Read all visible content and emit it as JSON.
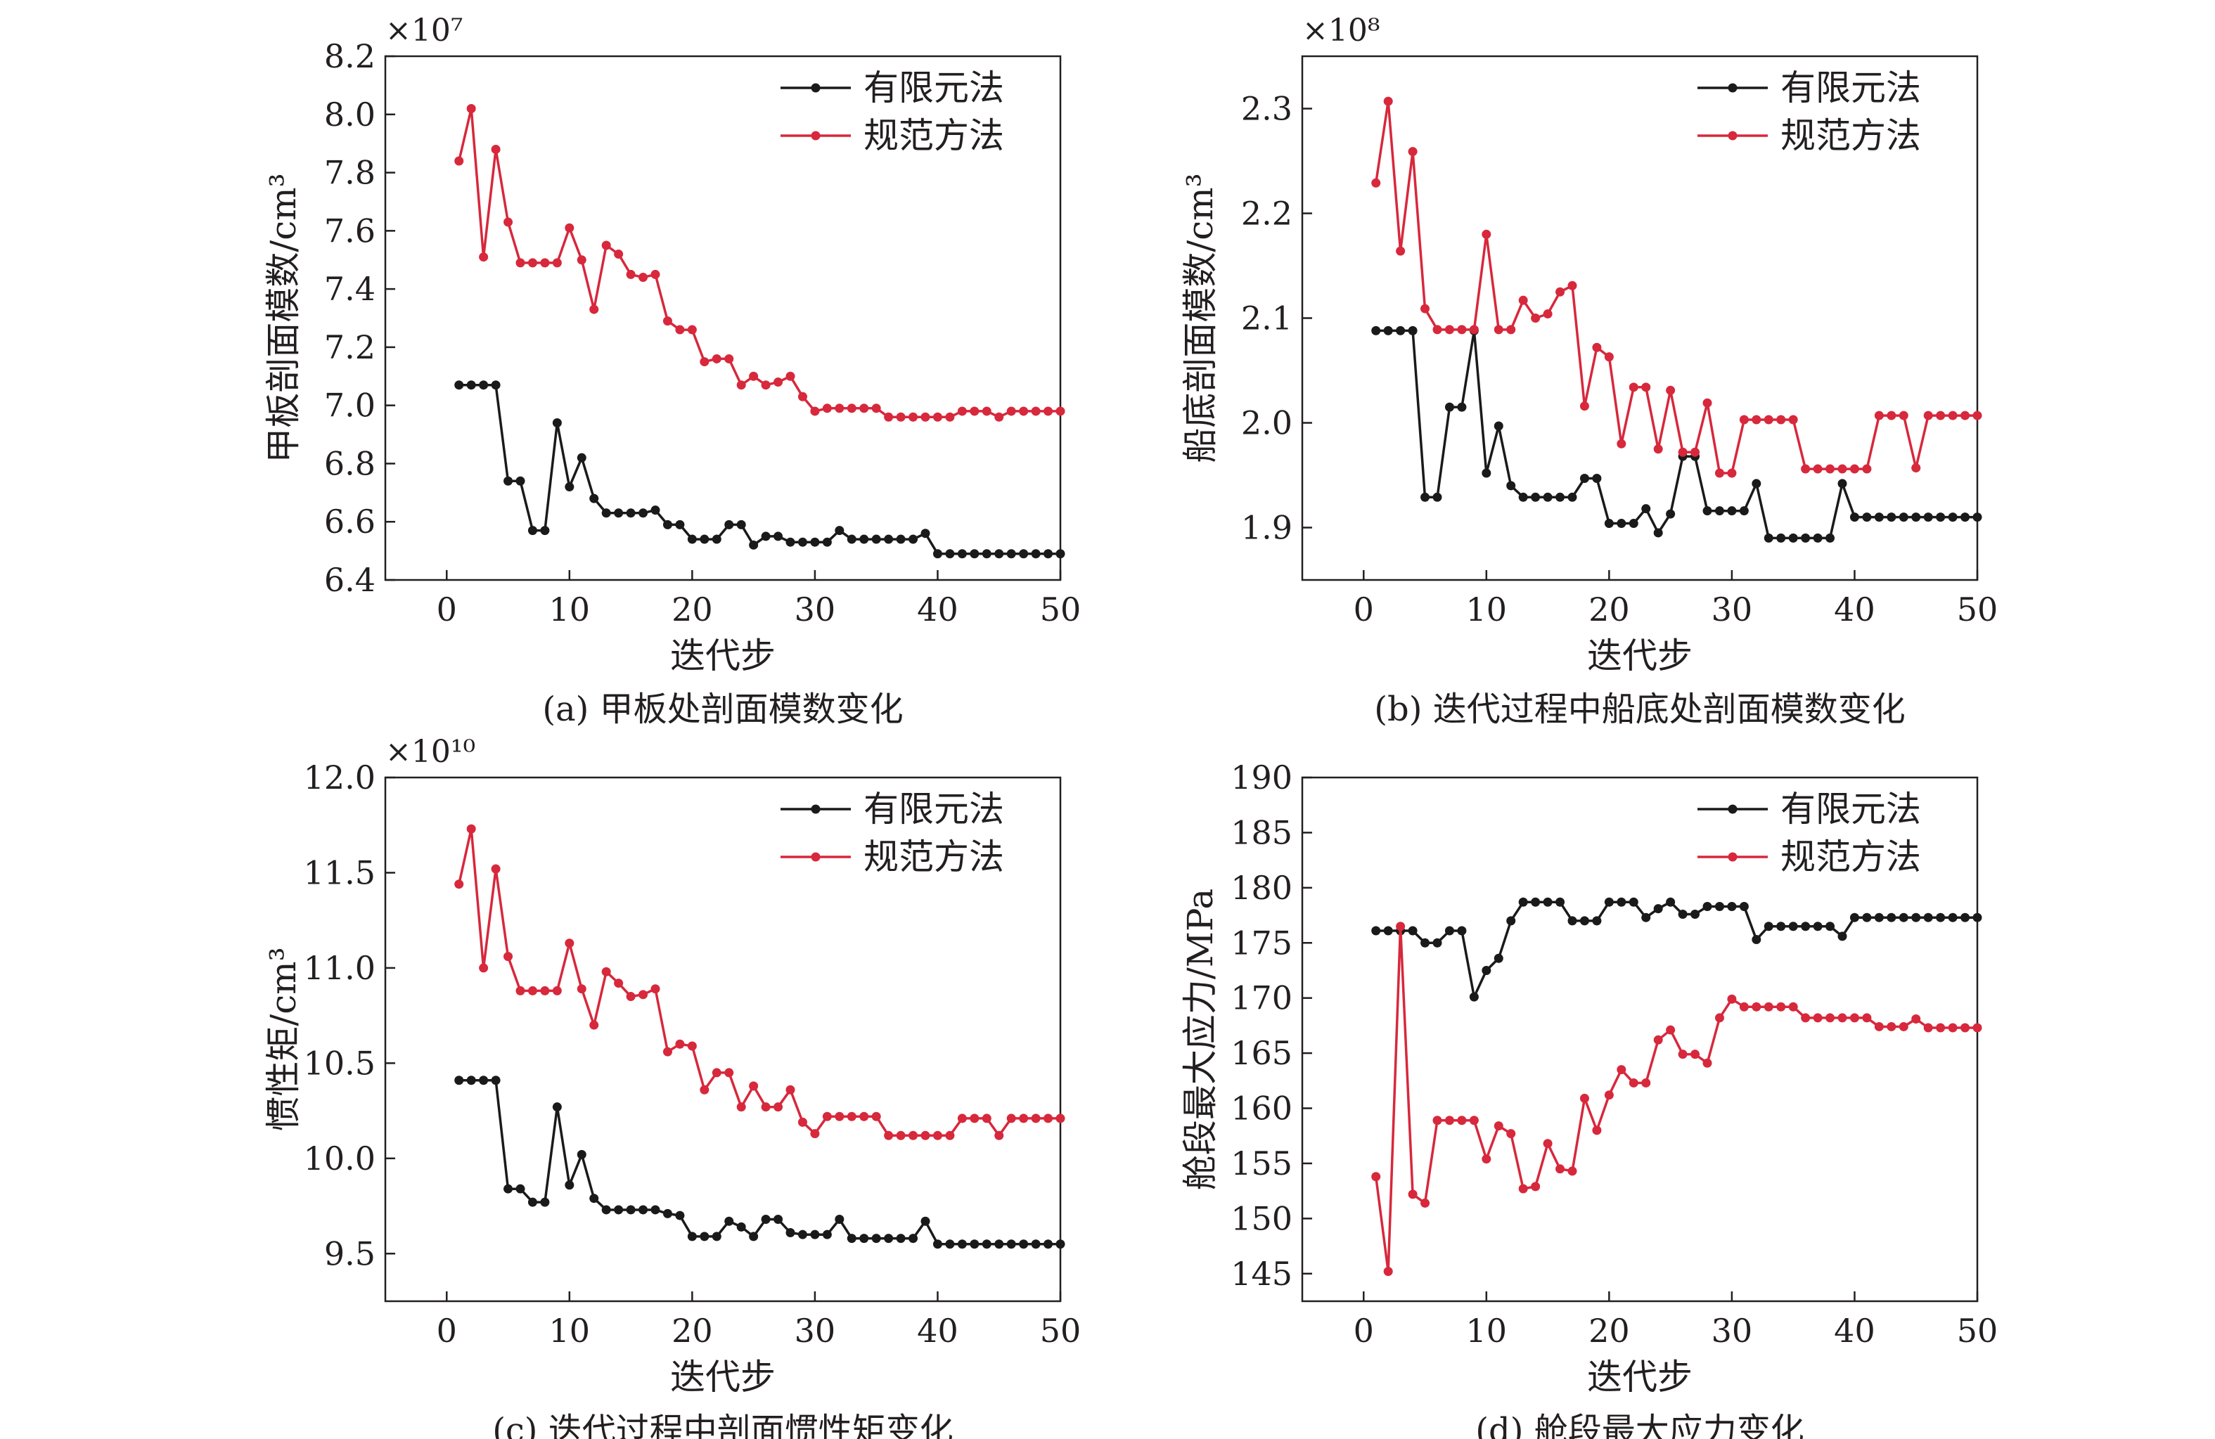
{
  "chart_data": [
    {
      "type": "line",
      "caption": "(a) 甲板处剖面模数变化",
      "xlabel": "迭代步",
      "ylabel": "甲板剖面模数/cm³",
      "exponent": "×10⁷",
      "xlim": [
        -5,
        50
      ],
      "ylim": [
        6.4,
        8.2
      ],
      "xticks": [
        0,
        10,
        20,
        30,
        40,
        50
      ],
      "yticks": [
        "6.4",
        "6.6",
        "6.8",
        "7.0",
        "7.2",
        "7.4",
        "7.6",
        "7.8",
        "8.0",
        "8.2"
      ],
      "grid": false,
      "legend_position": "top-right",
      "x": [
        1,
        2,
        3,
        4,
        5,
        6,
        7,
        8,
        9,
        10,
        11,
        12,
        13,
        14,
        15,
        16,
        17,
        18,
        19,
        20,
        21,
        22,
        23,
        24,
        25,
        26,
        27,
        28,
        29,
        30,
        31,
        32,
        33,
        34,
        35,
        36,
        37,
        38,
        39,
        40,
        41,
        42,
        43,
        44,
        45,
        46,
        47,
        48,
        49,
        50
      ],
      "series": [
        {
          "name": "有限元法",
          "color": "#1a1a1a",
          "values": [
            7.07,
            7.07,
            7.07,
            7.07,
            6.74,
            6.74,
            6.57,
            6.57,
            6.94,
            6.72,
            6.82,
            6.68,
            6.63,
            6.63,
            6.63,
            6.63,
            6.64,
            6.59,
            6.59,
            6.54,
            6.54,
            6.54,
            6.59,
            6.59,
            6.52,
            6.55,
            6.55,
            6.53,
            6.53,
            6.53,
            6.53,
            6.57,
            6.54,
            6.54,
            6.54,
            6.54,
            6.54,
            6.54,
            6.56,
            6.49,
            6.49,
            6.49,
            6.49,
            6.49,
            6.49,
            6.49,
            6.49,
            6.49,
            6.49,
            6.49
          ]
        },
        {
          "name": "规范方法",
          "color": "#d7283c",
          "values": [
            7.84,
            8.02,
            7.51,
            7.88,
            7.63,
            7.49,
            7.49,
            7.49,
            7.49,
            7.61,
            7.5,
            7.33,
            7.55,
            7.52,
            7.45,
            7.44,
            7.45,
            7.29,
            7.26,
            7.26,
            7.15,
            7.16,
            7.16,
            7.07,
            7.1,
            7.07,
            7.08,
            7.1,
            7.03,
            6.98,
            6.99,
            6.99,
            6.99,
            6.99,
            6.99,
            6.96,
            6.96,
            6.96,
            6.96,
            6.96,
            6.96,
            6.98,
            6.98,
            6.98,
            6.96,
            6.98,
            6.98,
            6.98,
            6.98,
            6.98
          ]
        }
      ]
    },
    {
      "type": "line",
      "caption": "(b) 迭代过程中船底处剖面模数变化",
      "xlabel": "迭代步",
      "ylabel": "船底剖面模数/cm³",
      "exponent": "×10⁸",
      "xlim": [
        -5,
        50
      ],
      "ylim": [
        1.85,
        2.35
      ],
      "xticks": [
        0,
        10,
        20,
        30,
        40,
        50
      ],
      "yticks": [
        "1.9",
        "2.0",
        "2.1",
        "2.2",
        "2.3"
      ],
      "grid": false,
      "legend_position": "top-right",
      "x": [
        1,
        2,
        3,
        4,
        5,
        6,
        7,
        8,
        9,
        10,
        11,
        12,
        13,
        14,
        15,
        16,
        17,
        18,
        19,
        20,
        21,
        22,
        23,
        24,
        25,
        26,
        27,
        28,
        29,
        30,
        31,
        32,
        33,
        34,
        35,
        36,
        37,
        38,
        39,
        40,
        41,
        42,
        43,
        44,
        45,
        46,
        47,
        48,
        49,
        50
      ],
      "series": [
        {
          "name": "有限元法",
          "color": "#1a1a1a",
          "values": [
            2.088,
            2.088,
            2.088,
            2.088,
            1.929,
            1.929,
            2.015,
            2.015,
            2.088,
            1.952,
            1.997,
            1.94,
            1.929,
            1.929,
            1.929,
            1.929,
            1.929,
            1.947,
            1.947,
            1.904,
            1.904,
            1.904,
            1.918,
            1.895,
            1.913,
            1.968,
            1.968,
            1.916,
            1.916,
            1.916,
            1.916,
            1.942,
            1.89,
            1.89,
            1.89,
            1.89,
            1.89,
            1.89,
            1.942,
            1.91,
            1.91,
            1.91,
            1.91,
            1.91,
            1.91,
            1.91,
            1.91,
            1.91,
            1.91,
            1.91
          ]
        },
        {
          "name": "规范方法",
          "color": "#d7283c",
          "values": [
            2.229,
            2.307,
            2.164,
            2.259,
            2.109,
            2.089,
            2.089,
            2.089,
            2.089,
            2.18,
            2.089,
            2.089,
            2.117,
            2.1,
            2.104,
            2.125,
            2.131,
            2.016,
            2.072,
            2.063,
            1.98,
            2.034,
            2.034,
            1.975,
            2.031,
            1.972,
            1.972,
            2.019,
            1.952,
            1.952,
            2.003,
            2.003,
            2.003,
            2.003,
            2.003,
            1.956,
            1.956,
            1.956,
            1.956,
            1.956,
            1.956,
            2.007,
            2.007,
            2.007,
            1.957,
            2.007,
            2.007,
            2.007,
            2.007,
            2.007
          ]
        }
      ]
    },
    {
      "type": "line",
      "caption": "(c) 迭代过程中剖面惯性矩变化",
      "xlabel": "迭代步",
      "ylabel": "惯性矩/cm³",
      "exponent": "×10¹⁰",
      "xlim": [
        -5,
        50
      ],
      "ylim": [
        9.25,
        12.0
      ],
      "xticks": [
        0,
        10,
        20,
        30,
        40,
        50
      ],
      "yticks": [
        "9.5",
        "10.0",
        "10.5",
        "11.0",
        "11.5",
        "12.0"
      ],
      "grid": false,
      "legend_position": "top-right",
      "x": [
        1,
        2,
        3,
        4,
        5,
        6,
        7,
        8,
        9,
        10,
        11,
        12,
        13,
        14,
        15,
        16,
        17,
        18,
        19,
        20,
        21,
        22,
        23,
        24,
        25,
        26,
        27,
        28,
        29,
        30,
        31,
        32,
        33,
        34,
        35,
        36,
        37,
        38,
        39,
        40,
        41,
        42,
        43,
        44,
        45,
        46,
        47,
        48,
        49,
        50
      ],
      "series": [
        {
          "name": "有限元法",
          "color": "#1a1a1a",
          "values": [
            10.41,
            10.41,
            10.41,
            10.41,
            9.84,
            9.84,
            9.77,
            9.77,
            10.27,
            9.86,
            10.02,
            9.79,
            9.73,
            9.73,
            9.73,
            9.73,
            9.73,
            9.71,
            9.7,
            9.59,
            9.59,
            9.59,
            9.67,
            9.64,
            9.59,
            9.68,
            9.68,
            9.61,
            9.6,
            9.6,
            9.6,
            9.68,
            9.58,
            9.58,
            9.58,
            9.58,
            9.58,
            9.58,
            9.67,
            9.55,
            9.55,
            9.55,
            9.55,
            9.55,
            9.55,
            9.55,
            9.55,
            9.55,
            9.55,
            9.55
          ]
        },
        {
          "name": "规范方法",
          "color": "#d7283c",
          "values": [
            11.44,
            11.73,
            11.0,
            11.52,
            11.06,
            10.88,
            10.88,
            10.88,
            10.88,
            11.13,
            10.89,
            10.7,
            10.98,
            10.92,
            10.85,
            10.86,
            10.89,
            10.56,
            10.6,
            10.59,
            10.36,
            10.45,
            10.45,
            10.27,
            10.38,
            10.27,
            10.27,
            10.36,
            10.19,
            10.13,
            10.22,
            10.22,
            10.22,
            10.22,
            10.22,
            10.12,
            10.12,
            10.12,
            10.12,
            10.12,
            10.12,
            10.21,
            10.21,
            10.21,
            10.12,
            10.21,
            10.21,
            10.21,
            10.21,
            10.21
          ]
        }
      ]
    },
    {
      "type": "line",
      "caption": "(d) 舱段最大应力变化",
      "xlabel": "迭代步",
      "ylabel": "舱段最大应力/MPa",
      "exponent": "",
      "xlim": [
        -5,
        50
      ],
      "ylim": [
        142.5,
        190
      ],
      "xticks": [
        0,
        10,
        20,
        30,
        40,
        50
      ],
      "yticks": [
        "145",
        "150",
        "155",
        "160",
        "165",
        "170",
        "175",
        "180",
        "185",
        "190"
      ],
      "grid": false,
      "legend_position": "top-right",
      "x": [
        1,
        2,
        3,
        4,
        5,
        6,
        7,
        8,
        9,
        10,
        11,
        12,
        13,
        14,
        15,
        16,
        17,
        18,
        19,
        20,
        21,
        22,
        23,
        24,
        25,
        26,
        27,
        28,
        29,
        30,
        31,
        32,
        33,
        34,
        35,
        36,
        37,
        38,
        39,
        40,
        41,
        42,
        43,
        44,
        45,
        46,
        47,
        48,
        49,
        50
      ],
      "series": [
        {
          "name": "有限元法",
          "color": "#1a1a1a",
          "values": [
            176.1,
            176.1,
            176.1,
            176.1,
            175.0,
            175.0,
            176.1,
            176.1,
            170.1,
            172.5,
            173.6,
            177.0,
            178.7,
            178.7,
            178.7,
            178.7,
            177.0,
            177.0,
            177.0,
            178.7,
            178.7,
            178.7,
            177.3,
            178.1,
            178.7,
            177.6,
            177.6,
            178.3,
            178.3,
            178.3,
            178.3,
            175.3,
            176.5,
            176.5,
            176.5,
            176.5,
            176.5,
            176.5,
            175.6,
            177.3,
            177.3,
            177.3,
            177.3,
            177.3,
            177.3,
            177.3,
            177.3,
            177.3,
            177.3,
            177.3
          ]
        },
        {
          "name": "规范方法",
          "color": "#d7283c",
          "values": [
            153.8,
            145.2,
            176.5,
            152.2,
            151.4,
            158.9,
            158.9,
            158.9,
            158.9,
            155.4,
            158.4,
            157.7,
            152.7,
            152.9,
            156.8,
            154.5,
            154.3,
            160.9,
            158.0,
            161.2,
            163.5,
            162.3,
            162.3,
            166.2,
            167.1,
            164.9,
            164.9,
            164.1,
            168.2,
            169.9,
            169.2,
            169.2,
            169.2,
            169.2,
            169.2,
            168.2,
            168.2,
            168.2,
            168.2,
            168.2,
            168.2,
            167.4,
            167.4,
            167.4,
            168.1,
            167.3,
            167.3,
            167.3,
            167.3,
            167.3
          ]
        }
      ]
    }
  ]
}
